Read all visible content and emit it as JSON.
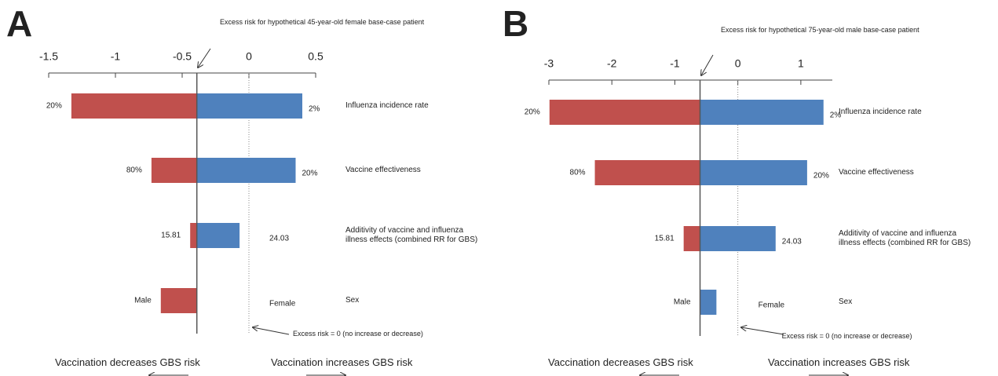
{
  "chart_data": [
    {
      "type": "tornado",
      "panel": "A",
      "base_annotation": "Excess risk for hypothetical 45-year-old female base-case patient",
      "zero_annotation": "Excess risk = 0 (no increase or decrease)",
      "left_caption": "Vaccination decreases GBS risk",
      "right_caption": "Vaccination increases GBS risk",
      "xlim": [
        -1.5,
        0.5
      ],
      "xticks": [
        -1.5,
        -1,
        -0.5,
        0,
        0.5
      ],
      "base": -0.39,
      "reference_line": 0,
      "categories": [
        "Influenza incidence rate",
        "Vaccine effectiveness",
        "Additivity of vaccine and influenza illness effects (combined RR for GBS)",
        "Sex"
      ],
      "series": [
        {
          "color": "#c0504d",
          "values": [
            -1.33,
            -0.73,
            -0.44,
            -0.66
          ],
          "inputs": [
            "20%",
            "80%",
            "15.81",
            "Male"
          ]
        },
        {
          "color": "#4f81bd",
          "values": [
            0.4,
            0.35,
            -0.07,
            -0.39
          ],
          "inputs": [
            "2%",
            "20%",
            "24.03",
            "Female"
          ]
        }
      ]
    },
    {
      "type": "tornado",
      "panel": "B",
      "base_annotation": "Excess risk for hypothetical 75-year-old male base-case patient",
      "zero_annotation": "Excess risk = 0 (no increase or decrease)",
      "left_caption": "Vaccination decreases GBS risk",
      "right_caption": "Vaccination increases GBS risk",
      "xlim": [
        -3,
        1.5
      ],
      "xticks": [
        -3,
        -2,
        -1,
        0,
        1
      ],
      "base": -0.6,
      "reference_line": 0,
      "categories": [
        "Influenza incidence rate",
        "Vaccine effectiveness",
        "Additivity of vaccine and influenza illness effects (combined RR for GBS)",
        "Sex"
      ],
      "series": [
        {
          "color": "#c0504d",
          "values": [
            -2.99,
            -2.27,
            -0.86,
            -0.6
          ],
          "inputs": [
            "20%",
            "80%",
            "15.81",
            "Male"
          ]
        },
        {
          "color": "#4f81bd",
          "values": [
            1.36,
            1.1,
            0.6,
            -0.34
          ],
          "inputs": [
            "2%",
            "20%",
            "24.03",
            "Female"
          ]
        }
      ]
    }
  ]
}
